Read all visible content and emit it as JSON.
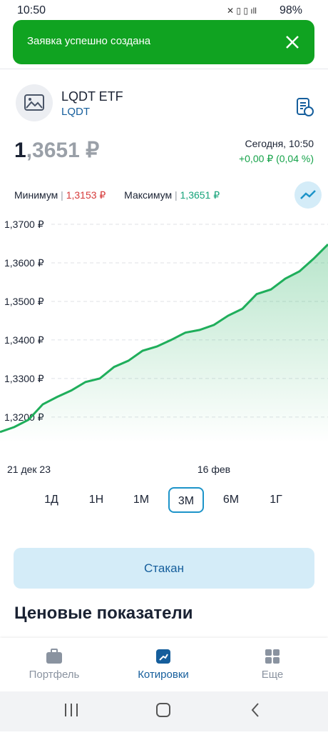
{
  "status_bar": {
    "time": "10:50",
    "battery": "98%"
  },
  "toast": {
    "text": "Заявка успешно создана"
  },
  "instrument": {
    "name": "LQDT ETF",
    "ticker": "LQDT",
    "price_int": "1",
    "price_frac": ",3651 ₽",
    "date": "Сегодня, 10:50",
    "change": "+0,00 ₽ (0,04 %)"
  },
  "range": {
    "min_label": "Минимум",
    "min_value": "1,3153 ₽",
    "max_label": "Максимум",
    "max_value": "1,3651 ₽"
  },
  "chart_data": {
    "type": "line",
    "categories": [
      "21 дек 23",
      null,
      null,
      null,
      null,
      null,
      null,
      null,
      null,
      null,
      null,
      null,
      null,
      null,
      null,
      "16 фев",
      null,
      null,
      null,
      null,
      null,
      null,
      null,
      null
    ],
    "series": [
      {
        "color": "#1fae5b",
        "values": [
          1.3161,
          1.3174,
          1.3193,
          1.3233,
          1.3252,
          1.3269,
          1.3291,
          1.33,
          1.333,
          1.3346,
          1.3372,
          1.3383,
          1.34,
          1.3419,
          1.3426,
          1.3439,
          1.3463,
          1.3481,
          1.3519,
          1.3531,
          1.3559,
          1.3578,
          1.3611,
          1.3648
        ]
      }
    ],
    "ylim": [
      1.3133,
      1.3726
    ],
    "yticks": [
      {
        "value": 1.32,
        "label": "1,3200 ₽"
      },
      {
        "value": 1.33,
        "label": "1,3300 ₽"
      },
      {
        "value": 1.34,
        "label": "1,3400 ₽"
      },
      {
        "value": 1.35,
        "label": "1,3500 ₽"
      },
      {
        "value": 1.36,
        "label": "1,3600 ₽"
      },
      {
        "value": 1.37,
        "label": "1,3700 ₽"
      }
    ],
    "grid": true
  },
  "periods": {
    "items": [
      "1Д",
      "1Н",
      "1М",
      "3М",
      "6М",
      "1Г"
    ],
    "selected": 3
  },
  "button": "Стакан",
  "section_title": "Ценовые показатели",
  "nav": {
    "items": [
      "Портфель",
      "Котировки",
      "Еще"
    ],
    "active": 1
  }
}
